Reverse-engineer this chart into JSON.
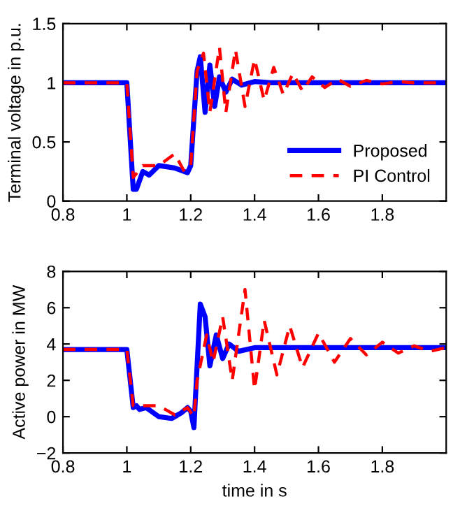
{
  "chart_data": [
    {
      "type": "line",
      "ylabel": "Terminal voltage in p.u.",
      "xlim": [
        0.8,
        2.0
      ],
      "xticks": [
        0.8,
        1,
        1.2,
        1.4,
        1.6,
        1.8
      ],
      "ylim": [
        0,
        1.5
      ],
      "yticks": [
        0,
        0.5,
        1,
        1.5
      ],
      "legend": "bottom right",
      "grid": false,
      "series": [
        {
          "name": "Proposed",
          "color": "#0000ff",
          "line_style": "solid",
          "x": [
            0.8,
            1.0,
            1.02,
            1.03,
            1.05,
            1.07,
            1.1,
            1.15,
            1.19,
            1.2,
            1.22,
            1.23,
            1.245,
            1.26,
            1.275,
            1.29,
            1.31,
            1.33,
            1.36,
            1.4,
            1.45,
            2.0
          ],
          "values": [
            1,
            1,
            0.1,
            0.1,
            0.25,
            0.22,
            0.3,
            0.28,
            0.24,
            0.3,
            1.1,
            1.22,
            0.75,
            1.15,
            0.8,
            1.05,
            0.92,
            1.03,
            0.98,
            1.01,
            1.0,
            1.0
          ]
        },
        {
          "name": "PI Control",
          "color": "#ff0000",
          "line_style": "dashed",
          "x": [
            0.8,
            1.0,
            1.02,
            1.05,
            1.1,
            1.15,
            1.18,
            1.2,
            1.22,
            1.24,
            1.26,
            1.29,
            1.31,
            1.34,
            1.37,
            1.4,
            1.43,
            1.46,
            1.49,
            1.52,
            1.55,
            1.58,
            1.62,
            1.66,
            1.7,
            1.75,
            1.8,
            1.85,
            1.9,
            2.0
          ],
          "values": [
            1,
            1,
            0.2,
            0.3,
            0.3,
            0.4,
            0.25,
            0.3,
            1.1,
            1.25,
            0.75,
            1.3,
            0.75,
            1.28,
            0.8,
            1.2,
            0.85,
            1.13,
            0.9,
            1.08,
            0.93,
            1.05,
            0.96,
            1.03,
            0.97,
            1.02,
            0.99,
            1.01,
            1.0,
            1.0
          ]
        }
      ]
    },
    {
      "type": "line",
      "xlabel": "time in s",
      "ylabel": "Active power in MW",
      "xlim": [
        0.8,
        2.0
      ],
      "xticks": [
        0.8,
        1,
        1.2,
        1.4,
        1.6,
        1.8
      ],
      "ylim": [
        -2,
        8
      ],
      "yticks": [
        {
          "value": -2,
          "label": "−2"
        },
        0,
        2,
        4,
        6,
        8
      ],
      "legend": false,
      "grid": false,
      "series": [
        {
          "color": "#0000ff",
          "line_style": "solid",
          "x": [
            0.8,
            1.0,
            1.02,
            1.03,
            1.04,
            1.06,
            1.1,
            1.14,
            1.17,
            1.19,
            1.2,
            1.21,
            1.23,
            1.245,
            1.26,
            1.28,
            1.3,
            1.32,
            1.35,
            1.4,
            2.0
          ],
          "values": [
            3.7,
            3.7,
            0.5,
            0.6,
            0.4,
            0.5,
            0.0,
            -0.1,
            0.2,
            0.5,
            0.3,
            -0.6,
            6.2,
            5.5,
            2.8,
            4.5,
            3.2,
            4.0,
            3.6,
            3.8,
            3.8
          ]
        },
        {
          "color": "#ff0000",
          "line_style": "dashed",
          "x": [
            0.8,
            1.0,
            1.02,
            1.1,
            1.15,
            1.19,
            1.21,
            1.22,
            1.25,
            1.27,
            1.3,
            1.33,
            1.37,
            1.4,
            1.43,
            1.47,
            1.51,
            1.55,
            1.6,
            1.65,
            1.7,
            1.75,
            1.8,
            1.85,
            1.9,
            1.95,
            2.0
          ],
          "values": [
            3.7,
            3.7,
            0.6,
            0.6,
            0.1,
            0.5,
            0.0,
            2.0,
            4.5,
            3.0,
            5.5,
            2.0,
            7.0,
            1.5,
            5.3,
            2.3,
            5.0,
            2.7,
            4.6,
            3.0,
            4.3,
            3.4,
            4.1,
            3.5,
            3.9,
            3.6,
            3.8
          ]
        }
      ]
    }
  ]
}
